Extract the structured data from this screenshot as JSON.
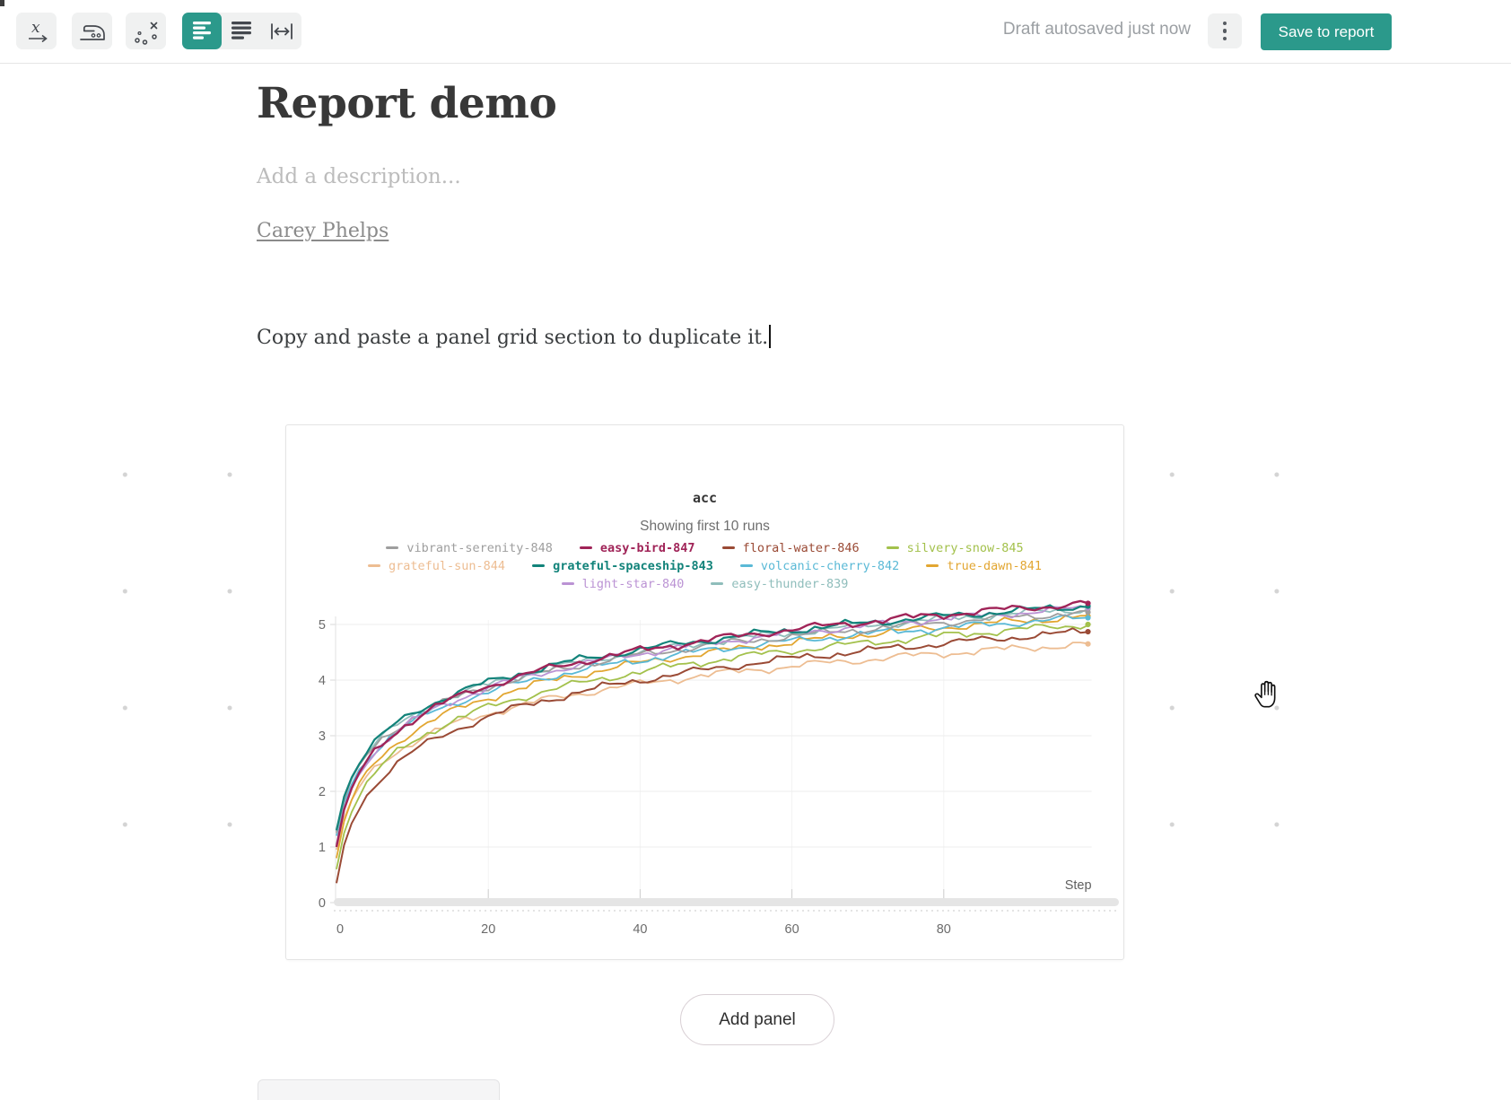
{
  "toolbar": {
    "autosave_status": "Draft autosaved just now",
    "save_button_label": "Save to report",
    "icons": [
      "x-axis-expression",
      "smoothing-iron",
      "outlier-scatter",
      "width-small",
      "width-medium",
      "width-full"
    ]
  },
  "report": {
    "title": "Report demo",
    "description_placeholder": "Add a description...",
    "author": "Carey Phelps",
    "body_text": "Copy and paste a panel grid section to duplicate it."
  },
  "add_panel_label": "Add panel",
  "colors": {
    "accent": "#2b998b"
  },
  "chart_data": {
    "type": "line",
    "title": "acc",
    "subtitle": "Showing first 10 runs",
    "xlabel": "Step",
    "ylabel": "",
    "xlim": [
      0,
      99
    ],
    "ylim": [
      0,
      5.5
    ],
    "xticks": [
      0,
      20,
      40,
      60,
      80
    ],
    "yticks": [
      0,
      1,
      2,
      3,
      4,
      5
    ],
    "grid": true,
    "legend_position": "top-center",
    "x": [
      0,
      10,
      20,
      30,
      40,
      50,
      60,
      70,
      80,
      90,
      99
    ],
    "series": [
      {
        "name": "grateful-sun-844",
        "color": "#edbd92",
        "width": 1.8,
        "values": [
          0.95,
          2.88,
          3.4,
          3.71,
          3.93,
          4.11,
          4.25,
          4.37,
          4.48,
          4.57,
          4.65
        ]
      },
      {
        "name": "floral-water-846",
        "color": "#9a4a35",
        "width": 2.0,
        "values": [
          0.35,
          2.7,
          3.34,
          3.72,
          4.0,
          4.21,
          4.39,
          4.53,
          4.66,
          4.78,
          4.87
        ]
      },
      {
        "name": "silvery-snow-845",
        "color": "#a3c14c",
        "width": 1.8,
        "values": [
          0.6,
          2.89,
          3.51,
          3.88,
          4.15,
          4.36,
          4.53,
          4.67,
          4.8,
          4.91,
          5.0
        ]
      },
      {
        "name": "true-dawn-841",
        "color": "#e2a631",
        "width": 1.8,
        "values": [
          0.8,
          3.07,
          3.68,
          4.04,
          4.31,
          4.51,
          4.68,
          4.83,
          4.95,
          5.06,
          5.15
        ]
      },
      {
        "name": "volcanic-cherry-842",
        "color": "#5ab9d6",
        "width": 1.8,
        "values": [
          1.2,
          3.24,
          3.79,
          4.12,
          4.36,
          4.55,
          4.7,
          4.83,
          4.94,
          5.04,
          5.12
        ]
      },
      {
        "name": "easy-thunder-839",
        "color": "#8fbdbb",
        "width": 1.8,
        "values": [
          1.28,
          3.36,
          3.92,
          4.26,
          4.51,
          4.7,
          4.85,
          4.98,
          5.1,
          5.2,
          5.28
        ]
      },
      {
        "name": "vibrant-serenity-848",
        "color": "#9e9e9e",
        "width": 1.8,
        "values": [
          1.25,
          3.32,
          3.88,
          4.21,
          4.45,
          4.64,
          4.79,
          4.92,
          5.04,
          5.14,
          5.22
        ]
      },
      {
        "name": "light-star-840",
        "color": "#bb93d4",
        "width": 1.8,
        "values": [
          1.05,
          3.26,
          3.86,
          4.22,
          4.48,
          4.68,
          4.84,
          4.98,
          5.11,
          5.21,
          5.3
        ]
      },
      {
        "name": "grateful-spaceship-843",
        "color": "#12837a",
        "width": 2.2,
        "values": [
          1.3,
          3.4,
          3.96,
          4.31,
          4.55,
          4.74,
          4.9,
          5.03,
          5.15,
          5.25,
          5.33
        ]
      },
      {
        "name": "easy-bird-847",
        "color": "#a02458",
        "width": 2.4,
        "values": [
          1.0,
          3.28,
          3.9,
          4.27,
          4.53,
          4.74,
          4.91,
          5.05,
          5.18,
          5.29,
          5.38
        ]
      }
    ],
    "legend_rows": [
      [
        "vibrant-serenity-848",
        "easy-bird-847",
        "floral-water-846",
        "silvery-snow-845"
      ],
      [
        "grateful-sun-844",
        "grateful-spaceship-843",
        "volcanic-cherry-842",
        "true-dawn-841"
      ],
      [
        "light-star-840",
        "easy-thunder-839"
      ]
    ],
    "legend_bold": [
      "easy-bird-847",
      "grateful-spaceship-843"
    ]
  }
}
